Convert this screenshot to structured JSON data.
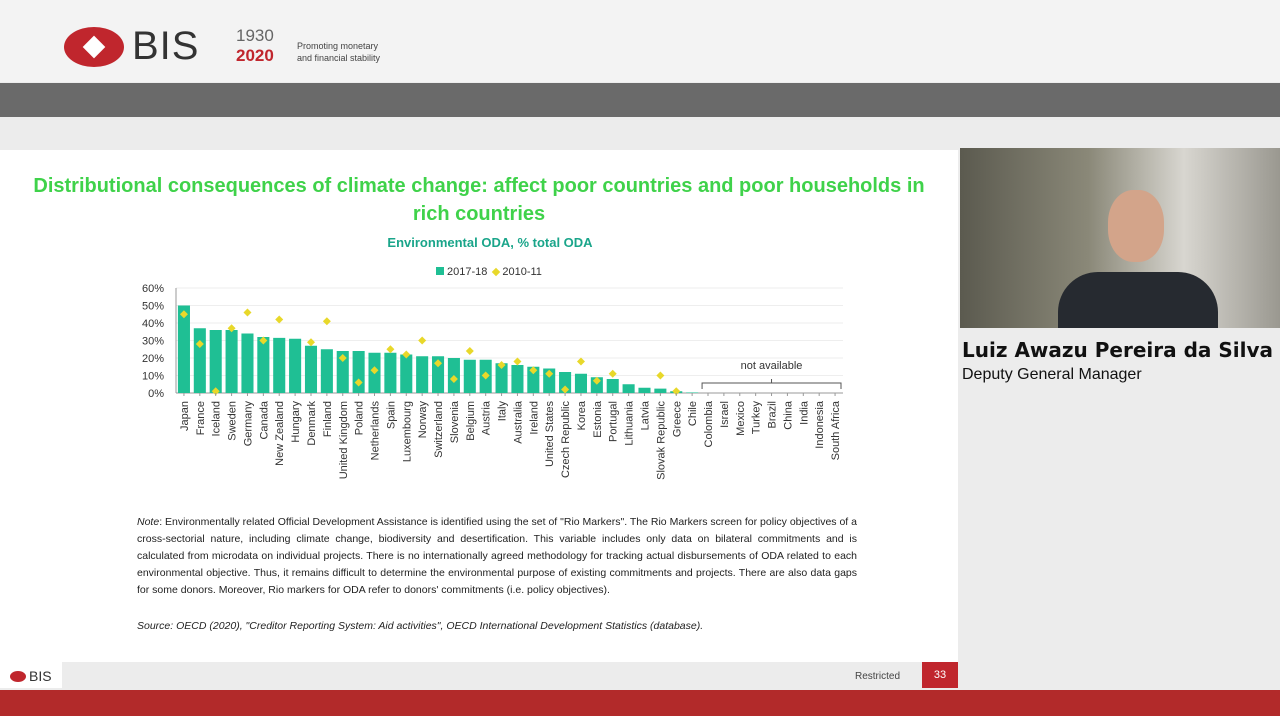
{
  "header": {
    "logo_text": "BIS",
    "year_start": "1930",
    "year_end": "2020",
    "tagline_line1": "Promoting monetary",
    "tagline_line2": "and financial stability"
  },
  "slide": {
    "title": "Distributional consequences of climate change: affect poor countries and poor households in rich countries",
    "note_label": "Note",
    "note": ": Environmentally related Official Development Assistance is identified using the set of \"Rio Markers\". The Rio Markers screen for policy objectives of a cross-sectorial nature, including climate change, biodiversity and desertification. This variable includes only data on bilateral commitments and is calculated from microdata on individual projects. There is no internationally agreed methodology for tracking actual disbursements of ODA related to each environmental objective. Thus, it remains difficult to determine the environmental purpose of existing commitments and projects. There are also data gaps for some donors. Moreover, Rio markers for ODA refer to donors' commitments (i.e. policy objectives).",
    "source": "Source: OECD (2020), \"Creditor Reporting System: Aid activities\", OECD International Development Statistics (database).",
    "footer_logo": "BIS",
    "restricted": "Restricted",
    "page_number": "33"
  },
  "speaker": {
    "name": "Luiz Awazu Pereira da Silva",
    "role": "Deputy General Manager"
  },
  "chart_data": {
    "type": "bar",
    "title": "Environmental ODA, % total ODA",
    "ylim": [
      0,
      60
    ],
    "yticks": [
      "0%",
      "10%",
      "20%",
      "30%",
      "40%",
      "50%",
      "60%"
    ],
    "annotation": "not available",
    "categories": [
      "Japan",
      "France",
      "Iceland",
      "Sweden",
      "Germany",
      "Canada",
      "New Zealand",
      "Hungary",
      "Denmark",
      "Finland",
      "United Kingdom",
      "Poland",
      "Netherlands",
      "Spain",
      "Luxembourg",
      "Norway",
      "Switzerland",
      "Slovenia",
      "Belgium",
      "Austria",
      "Italy",
      "Australia",
      "Ireland",
      "United States",
      "Czech Republic",
      "Korea",
      "Estonia",
      "Portugal",
      "Lithuania",
      "Latvia",
      "Slovak Republic",
      "Greece",
      "Chile",
      "Colombia",
      "Israel",
      "Mexico",
      "Turkey",
      "Brazil",
      "China",
      "India",
      "Indonesia",
      "South Africa"
    ],
    "series": [
      {
        "name": "2017-18",
        "color": "#1fbf94",
        "values": [
          50,
          37,
          36,
          36,
          34,
          32,
          31.5,
          31,
          27,
          25,
          24,
          24,
          23,
          23,
          22,
          21,
          21,
          20,
          19,
          19,
          17,
          16,
          15,
          14,
          12,
          11,
          9,
          8,
          5,
          3,
          2.5,
          1,
          0.3,
          null,
          null,
          null,
          null,
          null,
          null,
          null,
          null,
          null
        ]
      },
      {
        "name": "2010-11",
        "color": "#e8d82a",
        "values": [
          45,
          28,
          1,
          37,
          46,
          30,
          42,
          null,
          29,
          41,
          20,
          6,
          13,
          25,
          22,
          30,
          17,
          8,
          24,
          10,
          16,
          18,
          13,
          11,
          2,
          18,
          7,
          11,
          null,
          null,
          10,
          1,
          null,
          null,
          null,
          null,
          null,
          null,
          null,
          null,
          null,
          null
        ]
      }
    ]
  }
}
